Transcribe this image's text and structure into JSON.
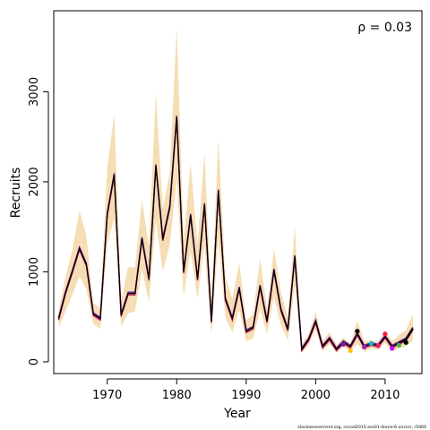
{
  "chart_data": {
    "type": "line",
    "xlabel": "Year",
    "ylabel": "Recruits",
    "annotation": "ρ = 0.03",
    "credit": "stockassessment.org, nscod2015-ass01-dome-6-uncorr, r5060",
    "xlim": [
      1962.3,
      2015.3
    ],
    "ylim": [
      -130,
      3900
    ],
    "x_ticks": [
      1970,
      1980,
      1990,
      2000,
      2010
    ],
    "y_ticks": [
      0,
      1000,
      2000,
      3000
    ],
    "band_color": "#f5deb3",
    "colors": {
      "line": "#000000",
      "retro": "#c2185b",
      "retro2": "#6a1b9a",
      "peels": [
        "#ffc107",
        "#9c27b0",
        "#00bcd4",
        "#e91e63",
        "#ff1744",
        "#d500f9",
        "#4caf50",
        "#000000"
      ]
    },
    "series": [
      {
        "x": [
          1963,
          1964,
          1965,
          1966,
          1967,
          1968,
          1969,
          1970,
          1971,
          1972,
          1973,
          1974,
          1975,
          1976,
          1977,
          1978,
          1979,
          1980,
          1981,
          1982,
          1983,
          1984,
          1985,
          1986,
          1987,
          1988,
          1989,
          1990,
          1991,
          1992,
          1993,
          1994,
          1995,
          1996,
          1997,
          1998,
          1999,
          2000,
          2001,
          2002,
          2003,
          2004,
          2005,
          2006,
          2007,
          2008,
          2009,
          2010,
          2011,
          2012,
          2013,
          2014
        ],
        "y": [
          480,
          770,
          1010,
          1260,
          1080,
          530,
          480,
          1640,
          2080,
          520,
          760,
          760,
          1370,
          920,
          2180,
          1360,
          1720,
          2720,
          1000,
          1630,
          920,
          1750,
          450,
          1900,
          700,
          480,
          820,
          340,
          380,
          840,
          450,
          1020,
          580,
          360,
          1170,
          140,
          250,
          450,
          170,
          260,
          140,
          220,
          170,
          310,
          170,
          200,
          180,
          280,
          170,
          210,
          250,
          370
        ]
      }
    ],
    "band_upper": [
      560,
      950,
      1250,
      1680,
      1400,
      650,
      600,
      2150,
      2750,
      680,
      1050,
      1050,
      1800,
      1280,
      3000,
      1700,
      2100,
      3720,
      1350,
      2200,
      1300,
      2330,
      650,
      2480,
      950,
      700,
      1100,
      460,
      530,
      1150,
      580,
      1260,
      780,
      490,
      1500,
      200,
      310,
      560,
      230,
      330,
      190,
      270,
      200,
      460,
      230,
      240,
      230,
      350,
      230,
      300,
      350,
      530
    ],
    "band_lower": [
      380,
      560,
      750,
      950,
      800,
      420,
      370,
      1300,
      1600,
      390,
      540,
      560,
      1030,
      660,
      1570,
      1000,
      1300,
      2030,
      730,
      1230,
      700,
      1300,
      300,
      1360,
      490,
      330,
      580,
      230,
      260,
      580,
      310,
      720,
      400,
      240,
      850,
      100,
      190,
      360,
      120,
      200,
      100,
      170,
      120,
      200,
      110,
      150,
      130,
      210,
      120,
      150,
      170,
      240
    ],
    "retro_peels": [
      {
        "end_year": 2005,
        "value": 125,
        "color": "#ffc107"
      },
      {
        "end_year": 2006,
        "value": 340,
        "color": "#000000"
      },
      {
        "end_year": 2007,
        "value": 165,
        "color": "#9c27b0"
      },
      {
        "end_year": 2008,
        "value": 205,
        "color": "#00bcd4"
      },
      {
        "end_year": 2009,
        "value": 180,
        "color": "#e91e63"
      },
      {
        "end_year": 2010,
        "value": 310,
        "color": "#ff1744"
      },
      {
        "end_year": 2011,
        "value": 150,
        "color": "#d500f9"
      },
      {
        "end_year": 2012,
        "value": 185,
        "color": "#4caf50"
      },
      {
        "end_year": 2013,
        "value": 215,
        "color": "#000000"
      },
      {
        "end_year": 2004,
        "value": 195,
        "color": "#7b1fa2"
      }
    ]
  }
}
